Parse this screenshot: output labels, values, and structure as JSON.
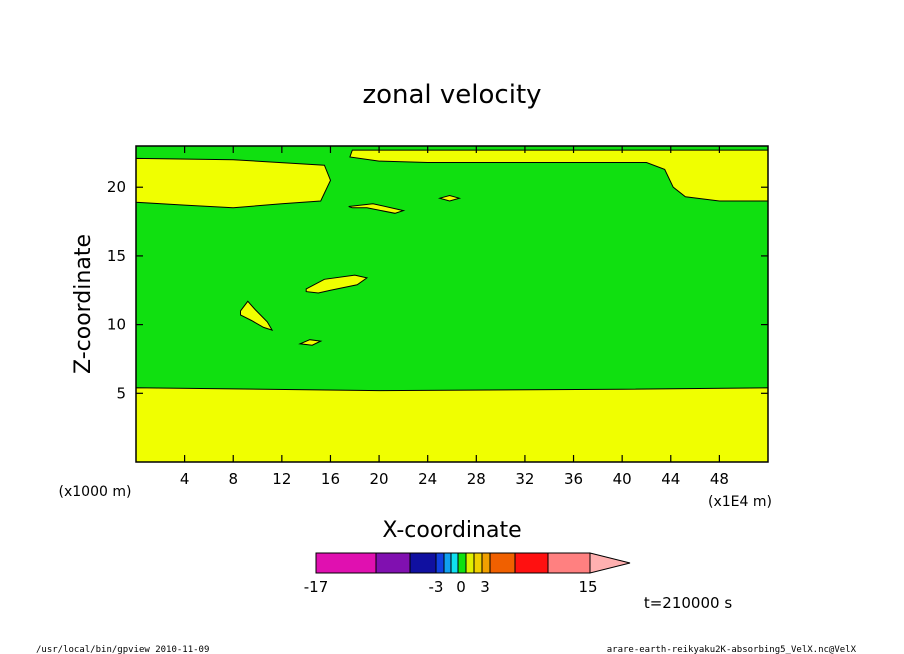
{
  "chart_data": {
    "type": "heatmap",
    "title": "zonal velocity",
    "xlabel": "X-coordinate",
    "ylabel": "Z-coordinate",
    "x_unit_label": "(x1E4 m)",
    "y_unit_label": "(x1000 m)",
    "xlim": [
      0,
      52
    ],
    "ylim": [
      0,
      23
    ],
    "x_ticks": [
      4,
      8,
      12,
      16,
      20,
      24,
      28,
      32,
      36,
      40,
      44,
      48
    ],
    "y_ticks": [
      5,
      10,
      15,
      20
    ],
    "time_label": "t=210000 s",
    "colorbar": {
      "labels": [
        "-17",
        "-3",
        "0",
        "3",
        "15"
      ],
      "colors": [
        "#e010b0",
        "#8010b0",
        "#1010a0",
        "#1040e0",
        "#10a0f0",
        "#10e0f0",
        "#10e010",
        "#e0f000",
        "#f0d000",
        "#f0a000",
        "#f06000",
        "#ff1010",
        "#ff8080",
        "#ffb0b0"
      ]
    },
    "colors": {
      "low": "#f0ff00",
      "high": "#10e010"
    },
    "regions": [
      {
        "level": "low",
        "name": "bottom-band",
        "points": [
          [
            0,
            0
          ],
          [
            52,
            0
          ],
          [
            52,
            5.4
          ],
          [
            40,
            5.3
          ],
          [
            20,
            5.2
          ],
          [
            0,
            5.4
          ]
        ]
      },
      {
        "level": "low",
        "name": "top-left-band",
        "points": [
          [
            0,
            22.1
          ],
          [
            8,
            22.0
          ],
          [
            15.5,
            21.6
          ],
          [
            16,
            20.5
          ],
          [
            15.2,
            19.0
          ],
          [
            12,
            18.8
          ],
          [
            8,
            18.5
          ],
          [
            4,
            18.7
          ],
          [
            0,
            18.9
          ]
        ]
      },
      {
        "level": "low",
        "name": "top-right-band",
        "points": [
          [
            44.5,
            22.7
          ],
          [
            52,
            22.7
          ],
          [
            52,
            19.0
          ],
          [
            48,
            19.0
          ],
          [
            45.2,
            19.3
          ],
          [
            44.2,
            20.0
          ],
          [
            43.5,
            21.3
          ],
          [
            42,
            21.8
          ],
          [
            32,
            21.8
          ],
          [
            24,
            21.8
          ],
          [
            20,
            21.9
          ],
          [
            17.6,
            22.2
          ],
          [
            17.8,
            22.7
          ]
        ]
      },
      {
        "level": "low",
        "name": "blob-center",
        "points": [
          [
            14,
            12.6
          ],
          [
            15.5,
            13.3
          ],
          [
            18,
            13.6
          ],
          [
            19,
            13.4
          ],
          [
            18.2,
            12.9
          ],
          [
            16,
            12.5
          ],
          [
            15,
            12.3
          ],
          [
            14,
            12.4
          ]
        ]
      },
      {
        "level": "low",
        "name": "blob-left",
        "points": [
          [
            8.6,
            11.0
          ],
          [
            9.2,
            11.7
          ],
          [
            9.8,
            11.1
          ],
          [
            10.8,
            10.2
          ],
          [
            11.2,
            9.6
          ],
          [
            10.5,
            9.8
          ],
          [
            9.5,
            10.3
          ],
          [
            8.6,
            10.7
          ]
        ]
      },
      {
        "level": "low",
        "name": "blob-small",
        "points": [
          [
            13.5,
            8.6
          ],
          [
            14.3,
            8.9
          ],
          [
            15.2,
            8.8
          ],
          [
            14.5,
            8.5
          ]
        ]
      },
      {
        "level": "low",
        "name": "blob-upper-mid",
        "points": [
          [
            17.5,
            18.6
          ],
          [
            19.5,
            18.8
          ],
          [
            22,
            18.3
          ],
          [
            21.3,
            18.1
          ],
          [
            19,
            18.5
          ],
          [
            17.8,
            18.5
          ]
        ]
      },
      {
        "level": "low",
        "name": "blob-upper-small",
        "points": [
          [
            25,
            19.2
          ],
          [
            25.8,
            19.4
          ],
          [
            26.6,
            19.2
          ],
          [
            25.8,
            19.0
          ]
        ]
      }
    ]
  },
  "footer": {
    "left": "/usr/local/bin/gpview   2010-11-09",
    "right": "arare-earth-reikyaku2K-absorbing5_VelX.nc@VelX"
  }
}
